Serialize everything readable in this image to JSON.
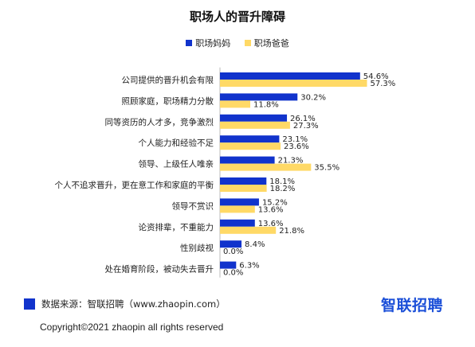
{
  "chart_data": {
    "type": "bar",
    "orientation": "horizontal",
    "title": "职场人的晋升障碍",
    "legend_position": "top-center",
    "categories": [
      "公司提供的晋升机会有限",
      "照顾家庭，职场精力分散",
      "同等资历的人才多，竞争激烈",
      "个人能力和经验不足",
      "领导、上级任人唯亲",
      "个人不追求晋升，更在意工作和家庭的平衡",
      "领导不赏识",
      "论资排辈，不重能力",
      "性别歧视",
      "处在婚育阶段，被动失去晋升"
    ],
    "series": [
      {
        "name": "职场妈妈",
        "color": "#1133cc",
        "values": [
          54.6,
          30.2,
          26.1,
          23.1,
          21.3,
          18.1,
          15.2,
          13.6,
          8.4,
          6.3
        ],
        "labels": [
          "54.6%",
          "30.2%",
          "26.1%",
          "23.1%",
          "21.3%",
          "18.1%",
          "15.2%",
          "13.6%",
          "8.4%",
          "6.3%"
        ]
      },
      {
        "name": "职场爸爸",
        "color": "#ffd966",
        "values": [
          57.3,
          11.8,
          27.3,
          23.6,
          35.5,
          18.2,
          13.6,
          21.8,
          0.0,
          0.0
        ],
        "labels": [
          "57.3%",
          "11.8%",
          "27.3%",
          "23.6%",
          "35.5%",
          "18.2%",
          "13.6%",
          "21.8%",
          "0.0%",
          "0.0%"
        ]
      }
    ],
    "xlim": [
      0,
      60
    ]
  },
  "footer": {
    "source": "数据来源：智联招聘（www.zhaopin.com）",
    "brand": "智联招聘",
    "copyright": "Copyright©2021 zhaopin all rights reserved"
  }
}
